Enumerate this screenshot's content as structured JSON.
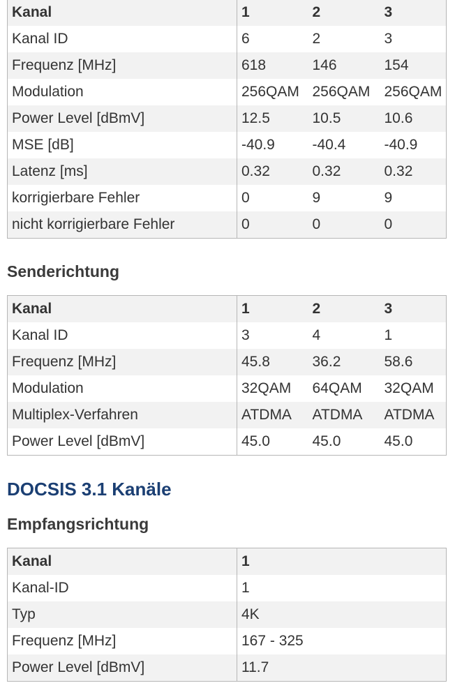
{
  "downstream30": {
    "header": [
      "Kanal",
      "1",
      "2",
      "3"
    ],
    "rows": [
      [
        "Kanal ID",
        "6",
        "2",
        "3"
      ],
      [
        "Frequenz [MHz]",
        "618",
        "146",
        "154"
      ],
      [
        "Modulation",
        "256QAM",
        "256QAM",
        "256QAM"
      ],
      [
        "Power Level [dBmV]",
        "12.5",
        "10.5",
        "10.6"
      ],
      [
        "MSE [dB]",
        "-40.9",
        "-40.4",
        "-40.9"
      ],
      [
        "Latenz [ms]",
        "0.32",
        "0.32",
        "0.32"
      ],
      [
        "korrigierbare Fehler",
        "0",
        "9",
        "9"
      ],
      [
        "nicht korrigierbare Fehler",
        "0",
        "0",
        "0"
      ]
    ]
  },
  "upstream_heading": "Senderichtung",
  "upstream30": {
    "header": [
      "Kanal",
      "1",
      "2",
      "3"
    ],
    "rows": [
      [
        "Kanal ID",
        "3",
        "4",
        "1"
      ],
      [
        "Frequenz [MHz]",
        "45.8",
        "36.2",
        "58.6"
      ],
      [
        "Modulation",
        "32QAM",
        "64QAM",
        "32QAM"
      ],
      [
        "Multiplex-Verfahren",
        "ATDMA",
        "ATDMA",
        "ATDMA"
      ],
      [
        "Power Level [dBmV]",
        "45.0",
        "45.0",
        "45.0"
      ]
    ]
  },
  "docsis31_heading": "DOCSIS 3.1 Kanäle",
  "downstream31_heading": "Empfangsrichtung",
  "downstream31": {
    "header": [
      "Kanal",
      "1"
    ],
    "rows": [
      [
        "Kanal-ID",
        "1"
      ],
      [
        "Typ",
        "4K"
      ],
      [
        "Frequenz [MHz]",
        "167 - 325"
      ],
      [
        "Power Level [dBmV]",
        "11.7"
      ]
    ]
  },
  "colors": {
    "heading_blue": "#1b3f73",
    "row_stripe": "#f2f2f2",
    "border": "#b6b6b6"
  }
}
